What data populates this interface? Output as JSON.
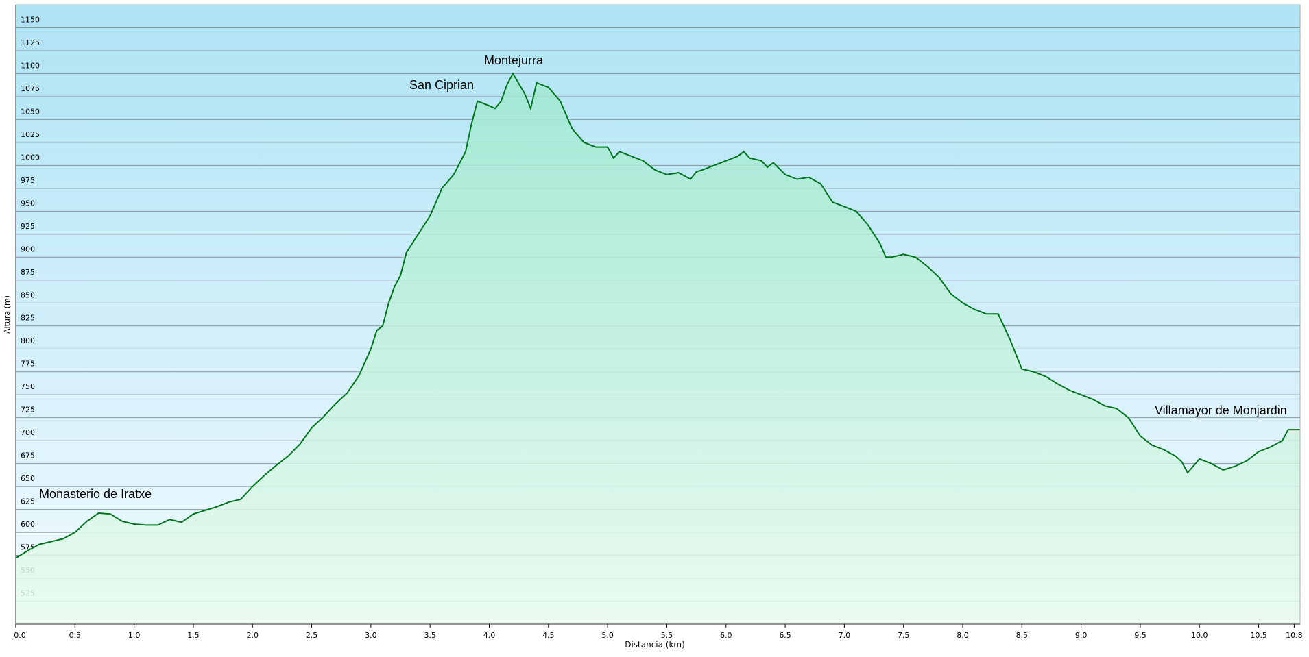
{
  "chart_data": {
    "type": "area",
    "xlabel": "Distancia  (km)",
    "ylabel": "Altura (m)",
    "x": [
      0.0,
      0.1,
      0.2,
      0.3,
      0.4,
      0.5,
      0.6,
      0.7,
      0.8,
      0.9,
      1.0,
      1.1,
      1.2,
      1.3,
      1.4,
      1.5,
      1.6,
      1.7,
      1.8,
      1.9,
      2.0,
      2.1,
      2.2,
      2.3,
      2.4,
      2.5,
      2.6,
      2.7,
      2.8,
      2.9,
      3.0,
      3.05,
      3.1,
      3.15,
      3.2,
      3.25,
      3.3,
      3.4,
      3.5,
      3.6,
      3.7,
      3.8,
      3.85,
      3.9,
      4.0,
      4.05,
      4.1,
      4.15,
      4.2,
      4.3,
      4.35,
      4.4,
      4.5,
      4.6,
      4.7,
      4.8,
      4.9,
      5.0,
      5.05,
      5.1,
      5.2,
      5.3,
      5.4,
      5.5,
      5.6,
      5.7,
      5.75,
      5.8,
      5.9,
      6.0,
      6.1,
      6.15,
      6.2,
      6.3,
      6.35,
      6.4,
      6.5,
      6.6,
      6.7,
      6.8,
      6.9,
      7.0,
      7.1,
      7.2,
      7.3,
      7.35,
      7.4,
      7.5,
      7.6,
      7.7,
      7.8,
      7.9,
      8.0,
      8.1,
      8.2,
      8.3,
      8.4,
      8.5,
      8.6,
      8.7,
      8.8,
      8.9,
      9.0,
      9.1,
      9.2,
      9.3,
      9.4,
      9.5,
      9.6,
      9.7,
      9.8,
      9.85,
      9.9,
      10.0,
      10.1,
      10.2,
      10.3,
      10.4,
      10.5,
      10.6,
      10.7,
      10.75,
      10.85
    ],
    "values": [
      572,
      580,
      587,
      590,
      593,
      600,
      612,
      621,
      620,
      612,
      609,
      608,
      608,
      614,
      611,
      620,
      624,
      628,
      633,
      636,
      650,
      662,
      673,
      683,
      696,
      714,
      726,
      740,
      752,
      771,
      800,
      820,
      825,
      850,
      868,
      880,
      905,
      925,
      945,
      975,
      990,
      1015,
      1045,
      1070,
      1065,
      1062,
      1070,
      1088,
      1100,
      1078,
      1062,
      1090,
      1085,
      1070,
      1040,
      1025,
      1020,
      1020,
      1008,
      1015,
      1010,
      1005,
      995,
      990,
      992,
      985,
      993,
      995,
      1000,
      1005,
      1010,
      1015,
      1008,
      1005,
      998,
      1003,
      990,
      985,
      987,
      980,
      960,
      955,
      950,
      935,
      915,
      900,
      900,
      903,
      900,
      890,
      878,
      860,
      850,
      843,
      838,
      838,
      810,
      778,
      775,
      770,
      762,
      755,
      750,
      745,
      738,
      735,
      725,
      705,
      695,
      690,
      683,
      677,
      665,
      680,
      675,
      668,
      672,
      678,
      688,
      693,
      700,
      712,
      712
    ],
    "color": "#00731c",
    "annotations": [
      "Monasterio de Iratxe",
      "San Ciprian",
      "Montejurra",
      "Villamayor de Monjardin"
    ],
    "xlim": [
      0,
      10.85
    ],
    "ylim": [
      500,
      1175
    ],
    "xticks": [
      {
        "value": 0,
        "label": "0.0"
      },
      0.5,
      {
        "value": 1,
        "label": "1.0"
      },
      1.5,
      {
        "value": 2,
        "label": "2.0"
      },
      2.5,
      {
        "value": 3,
        "label": "3.0"
      },
      3.5,
      {
        "value": 4,
        "label": "4.0"
      },
      4.5,
      {
        "value": 5,
        "label": "5.0"
      },
      5.5,
      {
        "value": 6,
        "label": "6.0"
      },
      6.5,
      {
        "value": 7,
        "label": "7.0"
      },
      7.5,
      {
        "value": 8,
        "label": "8.0"
      },
      8.5,
      {
        "value": 9,
        "label": "9.0"
      },
      9.5,
      {
        "value": 10,
        "label": "10.0"
      },
      10.5,
      10.8
    ],
    "yticks": [
      525,
      550,
      575,
      600,
      625,
      650,
      675,
      700,
      725,
      750,
      775,
      800,
      825,
      850,
      875,
      900,
      925,
      950,
      975,
      1000,
      1025,
      1050,
      1075,
      1100,
      1125,
      1150
    ],
    "grid": true
  }
}
